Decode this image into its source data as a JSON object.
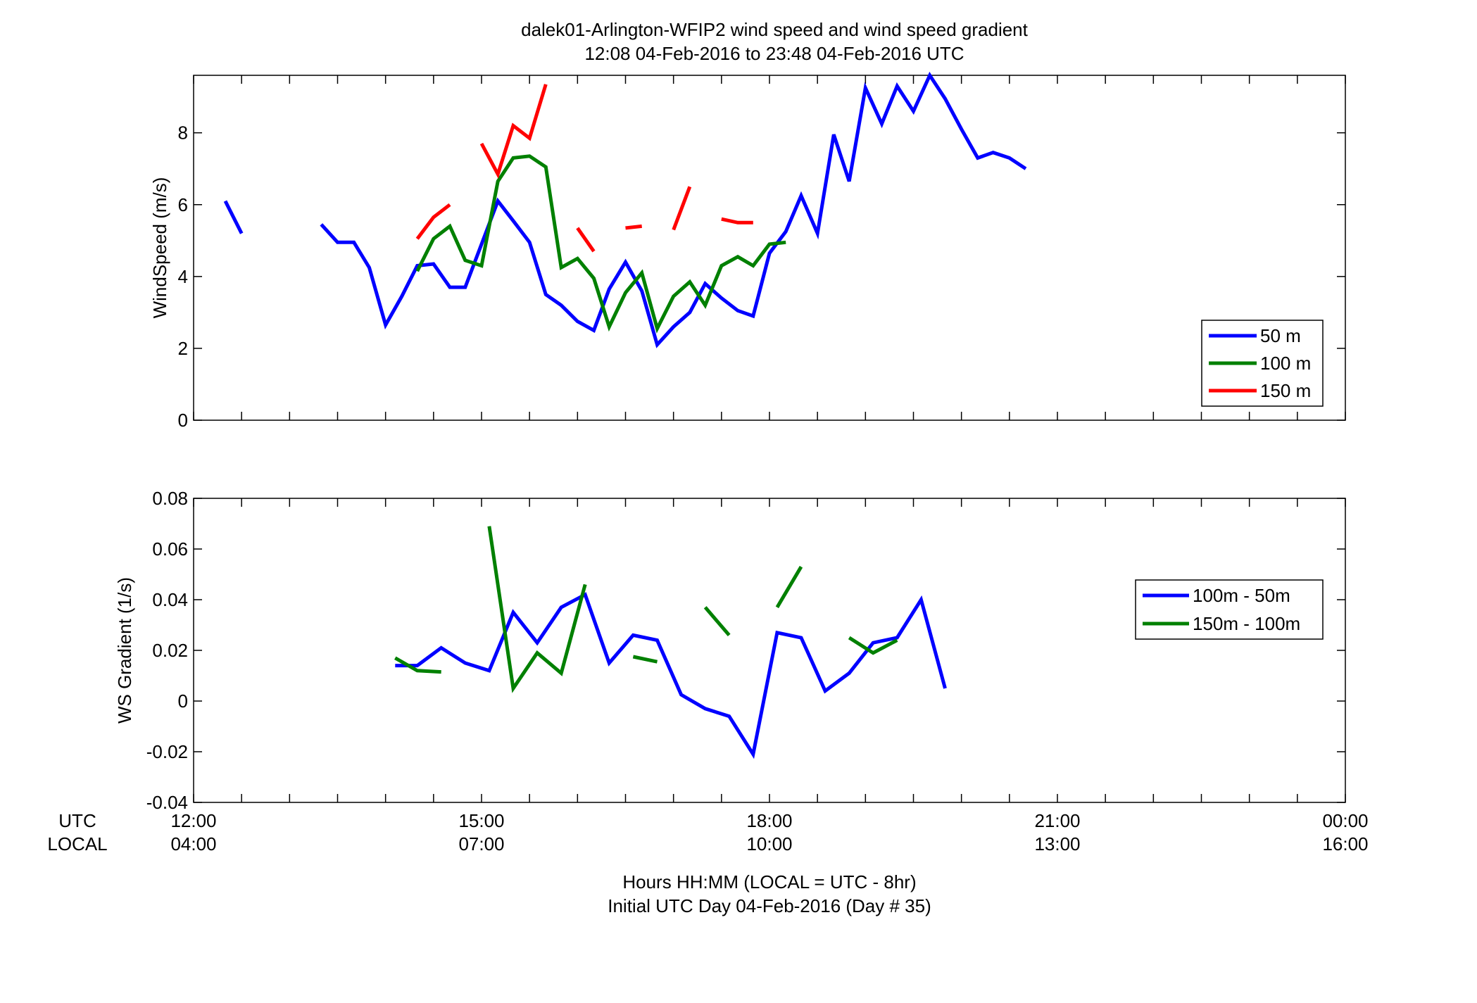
{
  "title": {
    "line1": "dalek01-Arlington-WFIP2  wind speed and wind speed gradient",
    "line2": "12:08 04-Feb-2016 to 23:48 04-Feb-2016  UTC"
  },
  "xaxis": {
    "utc_label": "UTC",
    "local_label": "LOCAL",
    "utc_ticks": [
      "12:00",
      "15:00",
      "18:00",
      "21:00",
      "00:00"
    ],
    "local_ticks": [
      "04:00",
      "07:00",
      "10:00",
      "13:00",
      "16:00"
    ],
    "xlabel_line1": "Hours HH:MM  (LOCAL = UTC - 8hr)",
    "xlabel_line2": "Initial UTC Day 04-Feb-2016 (Day # 35)"
  },
  "colors": {
    "blue": "#0000ff",
    "green": "#008000",
    "red": "#ff0000"
  },
  "chart_data": [
    {
      "type": "line",
      "ylabel": "WindSpeed (m/s)",
      "xlim": [
        12.0,
        24.0
      ],
      "ylim": [
        0,
        9.6
      ],
      "yticks": [
        0,
        2,
        4,
        6,
        8
      ],
      "ytick_labels": [
        "0",
        "2",
        "4",
        "6",
        "8"
      ],
      "legend_position": "lower-right",
      "x": [
        12.17,
        12.33,
        12.5,
        12.67,
        12.83,
        13.0,
        13.17,
        13.33,
        13.5,
        13.67,
        13.83,
        14.0,
        14.17,
        14.33,
        14.5,
        14.67,
        14.83,
        15.0,
        15.17,
        15.33,
        15.5,
        15.67,
        15.83,
        16.0,
        16.17,
        16.33,
        16.5,
        16.67,
        16.83,
        17.0,
        17.17,
        17.33,
        17.5,
        17.67,
        17.83,
        18.0,
        18.17,
        18.33,
        18.5,
        18.67,
        18.83,
        19.0,
        19.17,
        19.33,
        19.5,
        19.67,
        19.83,
        20.0,
        20.17,
        20.33,
        20.5,
        20.67,
        20.83,
        21.0,
        21.17,
        21.33,
        21.5,
        21.67,
        21.83,
        22.0,
        22.17,
        22.33,
        22.5,
        22.67,
        22.83,
        23.0,
        23.17,
        23.33,
        23.5,
        23.67,
        23.8
      ],
      "series": [
        {
          "name": "50 m",
          "color": "#0000ff",
          "values": [
            null,
            6.1,
            5.2,
            null,
            null,
            null,
            null,
            5.45,
            4.95,
            4.95,
            4.25,
            2.65,
            3.45,
            4.3,
            4.35,
            3.7,
            3.7,
            4.9,
            6.1,
            5.55,
            4.95,
            3.5,
            3.2,
            2.75,
            2.5,
            3.65,
            4.4,
            3.6,
            2.1,
            2.6,
            3.0,
            3.8,
            3.4,
            3.05,
            2.9,
            4.65,
            5.25,
            6.25,
            5.2,
            7.95,
            6.65,
            9.25,
            8.25,
            9.3,
            8.6,
            9.6,
            8.95,
            8.1,
            7.3,
            7.45,
            7.3,
            7.0,
            null,
            null,
            null,
            null,
            null,
            null,
            null,
            null,
            null,
            null,
            null,
            null,
            null,
            null,
            null,
            null,
            null,
            null,
            null
          ]
        },
        {
          "name": "100 m",
          "color": "#008000",
          "values": [
            null,
            null,
            null,
            null,
            null,
            null,
            null,
            null,
            null,
            null,
            null,
            null,
            null,
            4.15,
            5.05,
            5.4,
            4.45,
            4.3,
            6.65,
            7.3,
            7.35,
            7.05,
            4.25,
            4.5,
            3.95,
            2.6,
            3.55,
            4.1,
            2.55,
            3.45,
            3.85,
            3.2,
            4.3,
            4.55,
            4.3,
            4.9,
            4.95,
            null,
            null,
            null,
            null,
            null,
            null,
            null,
            null,
            null,
            null,
            null,
            null,
            null,
            null,
            null,
            null,
            null,
            null,
            null,
            null,
            null,
            null,
            null,
            null,
            null,
            null,
            null,
            null,
            null,
            null,
            null,
            null,
            null,
            null
          ]
        },
        {
          "name": "150 m",
          "color": "#ff0000",
          "values": [
            null,
            null,
            null,
            null,
            null,
            null,
            null,
            null,
            null,
            null,
            null,
            null,
            null,
            5.05,
            5.65,
            6.0,
            null,
            7.7,
            6.85,
            8.2,
            7.85,
            9.35,
            null,
            5.35,
            4.7,
            null,
            5.35,
            5.4,
            null,
            5.3,
            6.5,
            null,
            5.6,
            5.5,
            5.5,
            null,
            null,
            null,
            null,
            null,
            null,
            null,
            null,
            null,
            null,
            null,
            null,
            null,
            null,
            null,
            null,
            null,
            null,
            null,
            null,
            null,
            null,
            null,
            null,
            null,
            null,
            null,
            null,
            null,
            null,
            null,
            null,
            null,
            null,
            null,
            null
          ]
        }
      ]
    },
    {
      "type": "line",
      "ylabel": "WS Gradient (1/s)",
      "xlim": [
        12.0,
        24.0
      ],
      "ylim": [
        -0.04,
        0.08
      ],
      "yticks": [
        -0.04,
        -0.02,
        0,
        0.02,
        0.04,
        0.06,
        0.08
      ],
      "ytick_labels": [
        "-0.04",
        "-0.02",
        "0",
        "0.02",
        "0.04",
        "0.06",
        "0.08"
      ],
      "legend_position": "upper-right",
      "x": [
        14.1,
        14.33,
        14.58,
        14.83,
        15.08,
        15.33,
        15.58,
        15.83,
        16.08,
        16.33,
        16.58,
        16.83,
        17.08,
        17.33,
        17.58,
        17.83,
        18.08,
        18.33,
        18.58,
        18.83,
        19.08,
        19.33,
        19.58,
        19.83
      ],
      "series": [
        {
          "name": "100m - 50m",
          "color": "#0000ff",
          "values": [
            0.014,
            0.014,
            0.021,
            0.015,
            0.012,
            0.035,
            0.023,
            0.037,
            0.042,
            0.015,
            0.026,
            0.024,
            0.0025,
            -0.003,
            -0.006,
            -0.021,
            0.027,
            0.025,
            0.004,
            0.011,
            0.023,
            0.025,
            0.04,
            0.005
          ]
        },
        {
          "name": "150m - 100m",
          "color": "#008000",
          "values": [
            0.017,
            0.012,
            0.0115,
            null,
            0.069,
            0.005,
            0.019,
            0.011,
            0.046,
            null,
            0.0175,
            0.0155,
            null,
            0.037,
            0.026,
            null,
            0.037,
            0.053,
            null,
            0.025,
            0.019,
            0.024,
            null,
            null
          ]
        }
      ]
    }
  ]
}
